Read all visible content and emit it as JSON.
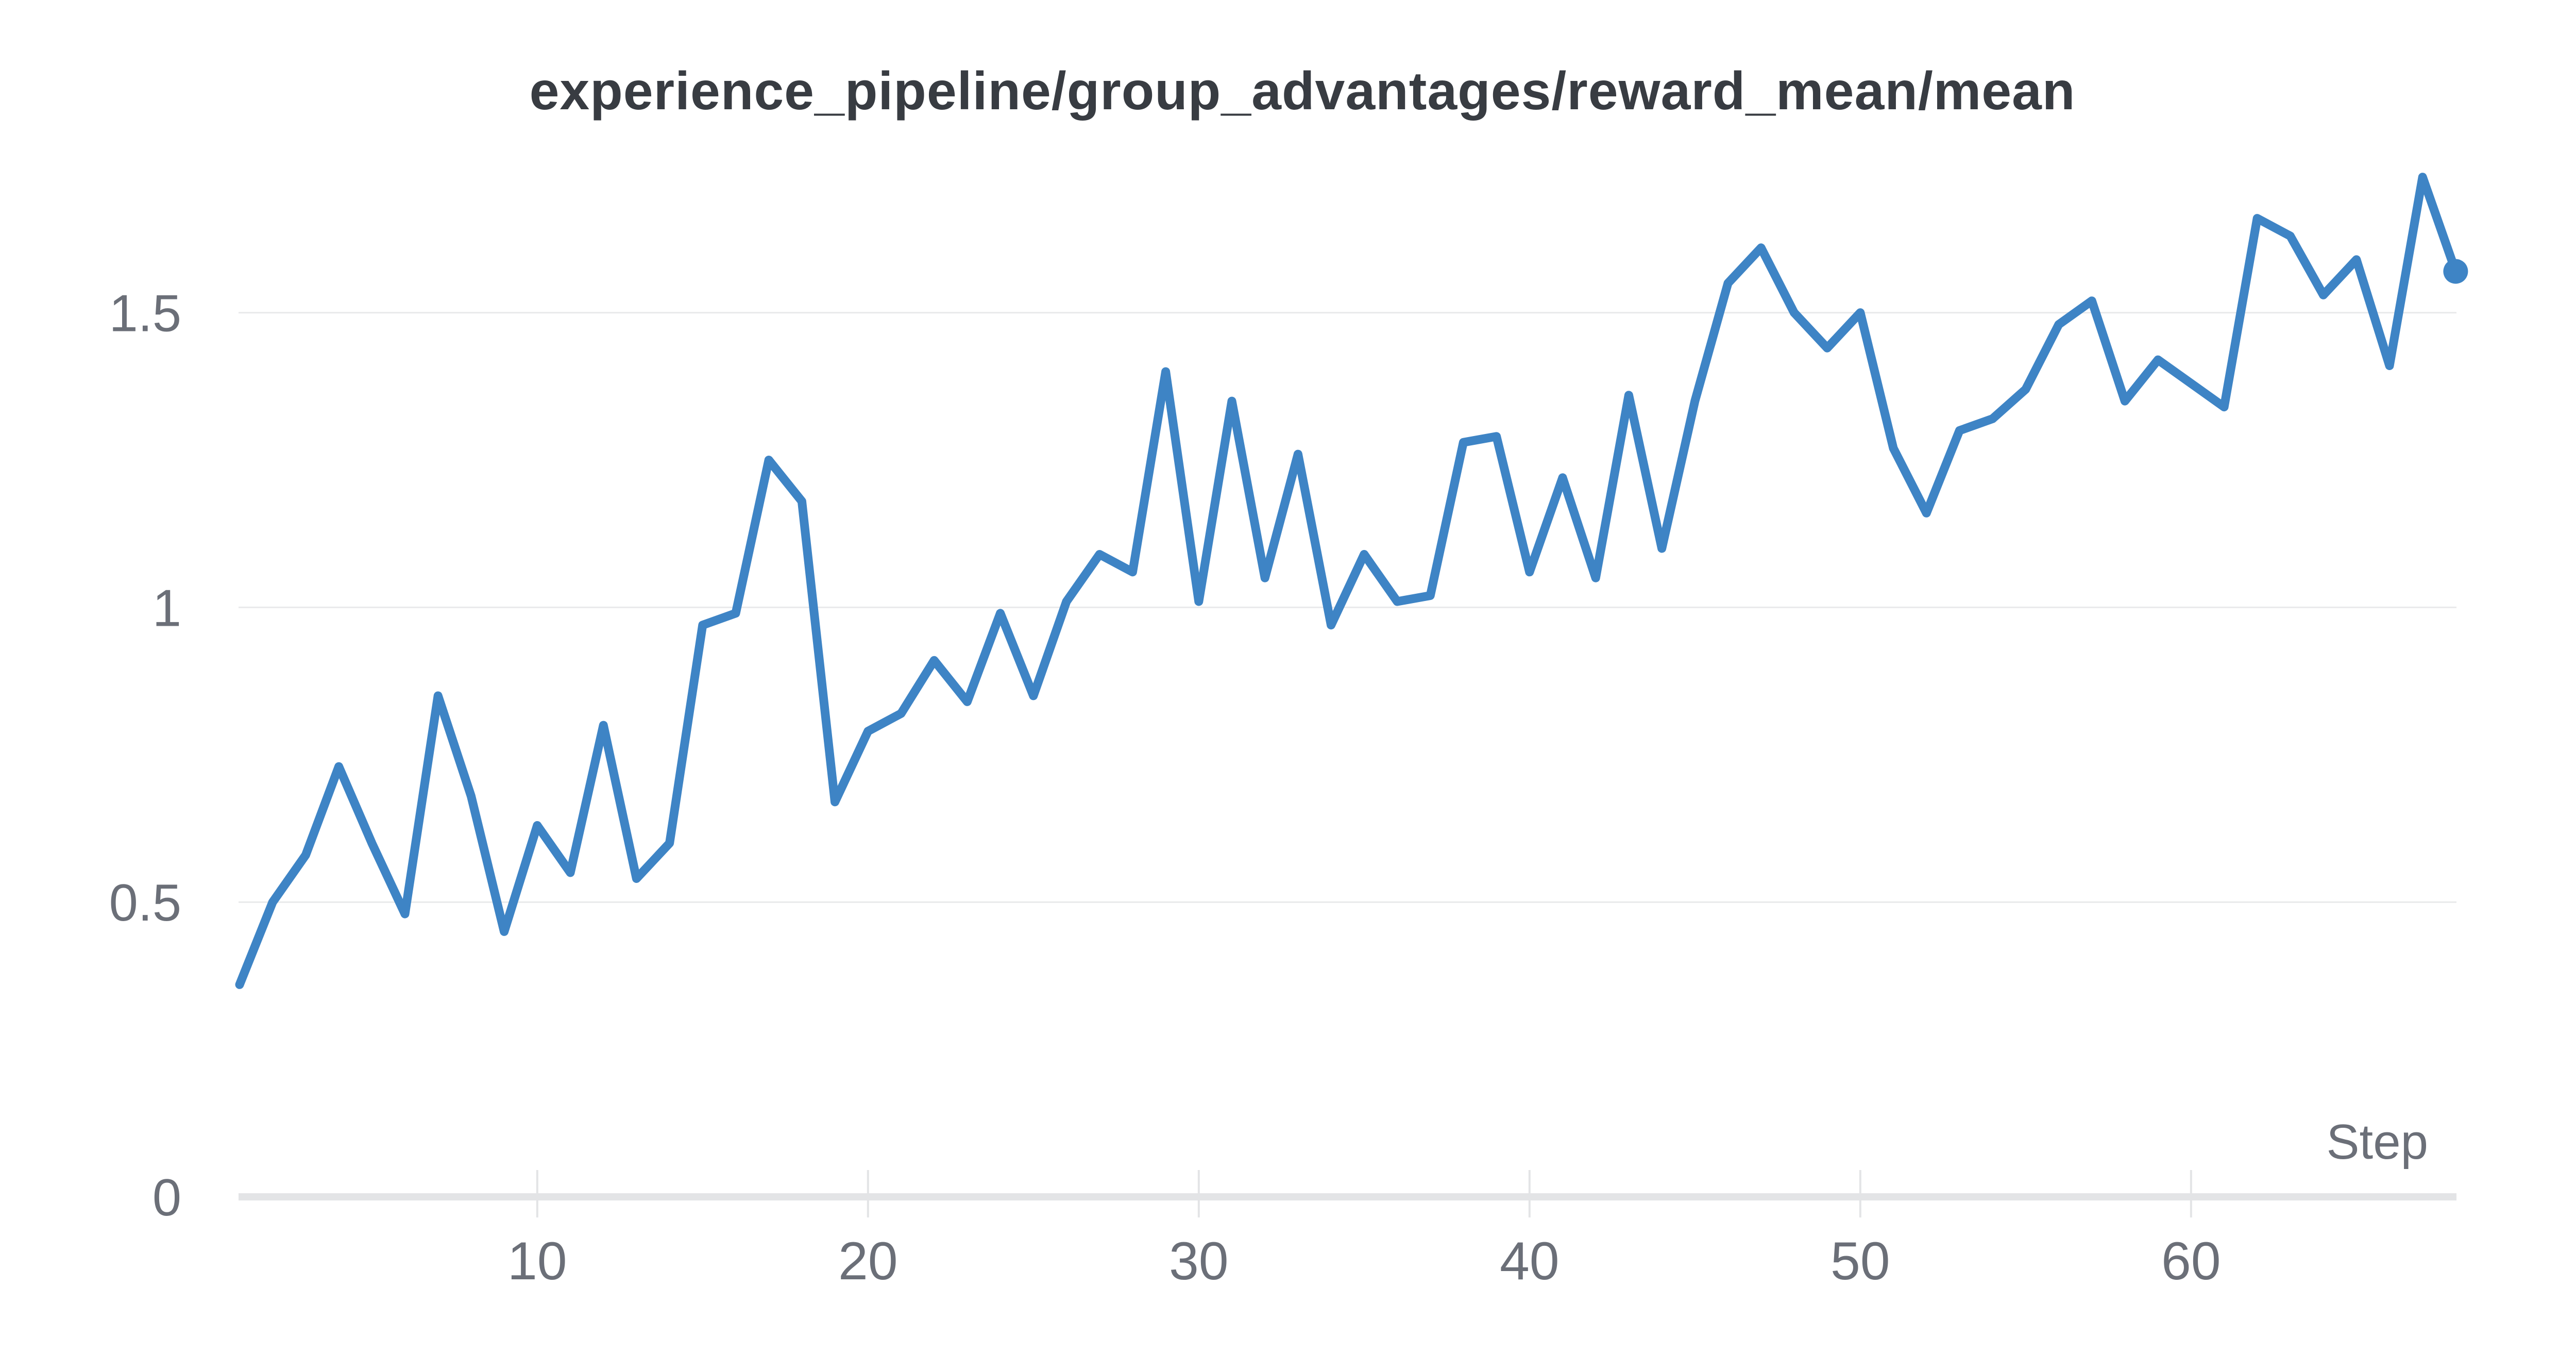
{
  "chart": {
    "title": "experience_pipeline/group_advantages/reward_mean/mean",
    "xlabel": "Step"
  },
  "chart_data": {
    "type": "line",
    "title": "experience_pipeline/group_advantages/reward_mean/mean",
    "xlabel": "Step",
    "ylabel": "",
    "legend": "none",
    "grid": "horizontal-only",
    "x": [
      1,
      2,
      3,
      4,
      5,
      6,
      7,
      8,
      9,
      10,
      11,
      12,
      13,
      14,
      15,
      16,
      17,
      18,
      19,
      20,
      21,
      22,
      23,
      24,
      25,
      26,
      27,
      28,
      29,
      30,
      31,
      32,
      33,
      34,
      35,
      36,
      37,
      38,
      39,
      40,
      41,
      42,
      43,
      44,
      45,
      46,
      47,
      48,
      49,
      50,
      51,
      52,
      53,
      54,
      55,
      56,
      57,
      58,
      59,
      60,
      61,
      62,
      63,
      64,
      65,
      66,
      67,
      68
    ],
    "values": [
      0.36,
      0.5,
      0.58,
      0.73,
      0.6,
      0.48,
      0.85,
      0.68,
      0.45,
      0.63,
      0.55,
      0.8,
      0.54,
      0.6,
      0.97,
      0.99,
      1.25,
      1.18,
      0.67,
      0.79,
      0.82,
      0.91,
      0.84,
      0.99,
      0.85,
      1.01,
      1.09,
      1.06,
      1.4,
      1.01,
      1.35,
      1.05,
      1.26,
      0.97,
      1.09,
      1.01,
      1.02,
      1.28,
      1.29,
      1.06,
      1.22,
      1.05,
      1.36,
      1.1,
      1.35,
      1.55,
      1.61,
      1.5,
      1.44,
      1.5,
      1.27,
      1.16,
      1.3,
      1.32,
      1.37,
      1.48,
      1.52,
      1.35,
      1.42,
      1.38,
      1.34,
      1.66,
      1.63,
      1.53,
      1.59,
      1.41,
      1.73,
      1.57
    ],
    "xlim": [
      1,
      68
    ],
    "ylim": [
      0,
      1.75
    ],
    "yticks": [
      0,
      0.5,
      1,
      1.5
    ],
    "ytick_labels": [
      "0",
      "0.5",
      "1",
      "1.5"
    ],
    "xticks": [
      10,
      20,
      30,
      40,
      50,
      60
    ],
    "xtick_labels": [
      "10",
      "20",
      "30",
      "40",
      "50",
      "60"
    ],
    "line_color": "#3e84c5",
    "line_width": 17,
    "last_point_marker": true,
    "marker_color": "#3e84c5",
    "marker_radius": 24,
    "last_point_value": 1.57
  },
  "colors": {
    "background": "#ffffff",
    "title_text": "#383c42",
    "tick_text": "#6b6f78",
    "gridline": "#e9eaeb",
    "axis": "#e3e4e6",
    "accent": "#3e84c5"
  }
}
